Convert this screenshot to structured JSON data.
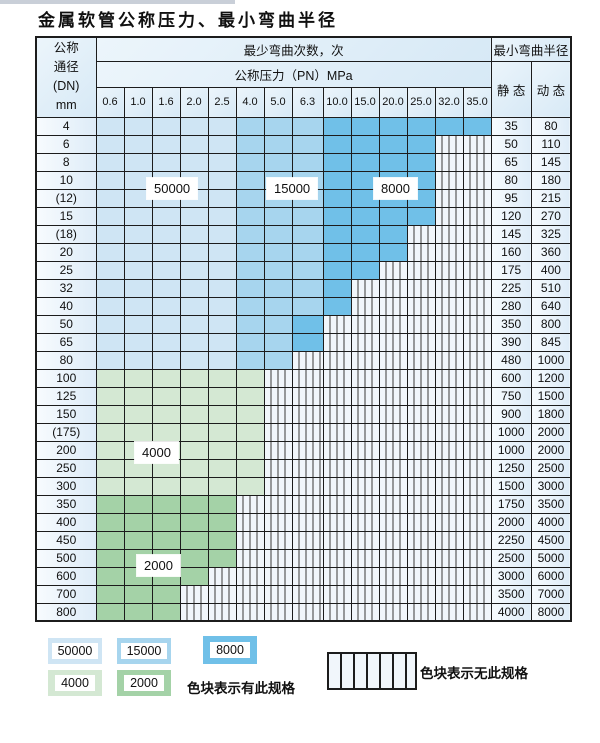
{
  "title": "金属软管公称压力、最小弯曲半径",
  "table": {
    "dn_header": [
      "公称",
      "通径",
      "(DN)",
      "mm"
    ],
    "bend_cycles_header": "最少弯曲次数，次",
    "pressure_header": "公称压力（PN）MPa",
    "radius_header": "最小弯曲半径",
    "static_label": "静 态",
    "dynamic_label": "动 态",
    "pressure_columns": [
      "0.6",
      "1.0",
      "1.6",
      "2.0",
      "2.5",
      "4.0",
      "5.0",
      "6.3",
      "10.0",
      "15.0",
      "20.0",
      "25.0",
      "32.0",
      "35.0"
    ],
    "rows": [
      {
        "dn": "4",
        "static": "35",
        "dynamic": "80",
        "cells": [
          "b1",
          "b1",
          "b1",
          "b1",
          "b1",
          "b2",
          "b2",
          "b2",
          "b3",
          "b3",
          "b3",
          "b3",
          "b3",
          "b3"
        ]
      },
      {
        "dn": "6",
        "static": "50",
        "dynamic": "110",
        "cells": [
          "b1",
          "b1",
          "b1",
          "b1",
          "b1",
          "b2",
          "b2",
          "b2",
          "b3",
          "b3",
          "b3",
          "b3",
          "x",
          "x"
        ]
      },
      {
        "dn": "8",
        "static": "65",
        "dynamic": "145",
        "cells": [
          "b1",
          "b1",
          "b1",
          "b1",
          "b1",
          "b2",
          "b2",
          "b2",
          "b3",
          "b3",
          "b3",
          "b3",
          "x",
          "x"
        ]
      },
      {
        "dn": "10",
        "static": "80",
        "dynamic": "180",
        "cells": [
          "b1",
          "b1",
          "b1",
          "b1",
          "b1",
          "b2",
          "b2",
          "b2",
          "b3",
          "b3",
          "b3",
          "b3",
          "x",
          "x"
        ]
      },
      {
        "dn": "(12)",
        "static": "95",
        "dynamic": "215",
        "cells": [
          "b1",
          "b1",
          "b1",
          "b1",
          "b1",
          "b2",
          "b2",
          "b2",
          "b3",
          "b3",
          "b3",
          "b3",
          "x",
          "x"
        ]
      },
      {
        "dn": "15",
        "static": "120",
        "dynamic": "270",
        "cells": [
          "b1",
          "b1",
          "b1",
          "b1",
          "b1",
          "b2",
          "b2",
          "b2",
          "b3",
          "b3",
          "b3",
          "b3",
          "x",
          "x"
        ]
      },
      {
        "dn": "(18)",
        "static": "145",
        "dynamic": "325",
        "cells": [
          "b1",
          "b1",
          "b1",
          "b1",
          "b1",
          "b2",
          "b2",
          "b2",
          "b3",
          "b3",
          "b3",
          "x",
          "x",
          "x"
        ]
      },
      {
        "dn": "20",
        "static": "160",
        "dynamic": "360",
        "cells": [
          "b1",
          "b1",
          "b1",
          "b1",
          "b1",
          "b2",
          "b2",
          "b2",
          "b3",
          "b3",
          "b3",
          "x",
          "x",
          "x"
        ]
      },
      {
        "dn": "25",
        "static": "175",
        "dynamic": "400",
        "cells": [
          "b1",
          "b1",
          "b1",
          "b1",
          "b1",
          "b2",
          "b2",
          "b2",
          "b3",
          "b3",
          "x",
          "x",
          "x",
          "x"
        ]
      },
      {
        "dn": "32",
        "static": "225",
        "dynamic": "510",
        "cells": [
          "b1",
          "b1",
          "b1",
          "b1",
          "b1",
          "b2",
          "b2",
          "b2",
          "b3",
          "x",
          "x",
          "x",
          "x",
          "x"
        ]
      },
      {
        "dn": "40",
        "static": "280",
        "dynamic": "640",
        "cells": [
          "b1",
          "b1",
          "b1",
          "b1",
          "b1",
          "b2",
          "b2",
          "b2",
          "b3",
          "x",
          "x",
          "x",
          "x",
          "x"
        ]
      },
      {
        "dn": "50",
        "static": "350",
        "dynamic": "800",
        "cells": [
          "b1",
          "b1",
          "b1",
          "b1",
          "b1",
          "b2",
          "b2",
          "b3",
          "x",
          "x",
          "x",
          "x",
          "x",
          "x"
        ]
      },
      {
        "dn": "65",
        "static": "390",
        "dynamic": "845",
        "cells": [
          "b1",
          "b1",
          "b1",
          "b1",
          "b1",
          "b2",
          "b2",
          "b3",
          "x",
          "x",
          "x",
          "x",
          "x",
          "x"
        ]
      },
      {
        "dn": "80",
        "static": "480",
        "dynamic": "1000",
        "cells": [
          "b1",
          "b1",
          "b1",
          "b1",
          "b1",
          "b2",
          "b2",
          "x",
          "x",
          "x",
          "x",
          "x",
          "x",
          "x"
        ]
      },
      {
        "dn": "100",
        "static": "600",
        "dynamic": "1200",
        "cells": [
          "g1",
          "g1",
          "g1",
          "g1",
          "g1",
          "g1",
          "x",
          "x",
          "x",
          "x",
          "x",
          "x",
          "x",
          "x"
        ]
      },
      {
        "dn": "125",
        "static": "750",
        "dynamic": "1500",
        "cells": [
          "g1",
          "g1",
          "g1",
          "g1",
          "g1",
          "g1",
          "x",
          "x",
          "x",
          "x",
          "x",
          "x",
          "x",
          "x"
        ]
      },
      {
        "dn": "150",
        "static": "900",
        "dynamic": "1800",
        "cells": [
          "g1",
          "g1",
          "g1",
          "g1",
          "g1",
          "g1",
          "x",
          "x",
          "x",
          "x",
          "x",
          "x",
          "x",
          "x"
        ]
      },
      {
        "dn": "(175)",
        "static": "1000",
        "dynamic": "2000",
        "cells": [
          "g1",
          "g1",
          "g1",
          "g1",
          "g1",
          "g1",
          "x",
          "x",
          "x",
          "x",
          "x",
          "x",
          "x",
          "x"
        ]
      },
      {
        "dn": "200",
        "static": "1000",
        "dynamic": "2000",
        "cells": [
          "g1",
          "g1",
          "g1",
          "g1",
          "g1",
          "g1",
          "x",
          "x",
          "x",
          "x",
          "x",
          "x",
          "x",
          "x"
        ]
      },
      {
        "dn": "250",
        "static": "1250",
        "dynamic": "2500",
        "cells": [
          "g1",
          "g1",
          "g1",
          "g1",
          "g1",
          "g1",
          "x",
          "x",
          "x",
          "x",
          "x",
          "x",
          "x",
          "x"
        ]
      },
      {
        "dn": "300",
        "static": "1500",
        "dynamic": "3000",
        "cells": [
          "g1",
          "g1",
          "g1",
          "g1",
          "g1",
          "g1",
          "x",
          "x",
          "x",
          "x",
          "x",
          "x",
          "x",
          "x"
        ]
      },
      {
        "dn": "350",
        "static": "1750",
        "dynamic": "3500",
        "cells": [
          "g2",
          "g2",
          "g2",
          "g2",
          "g2",
          "x",
          "x",
          "x",
          "x",
          "x",
          "x",
          "x",
          "x",
          "x"
        ]
      },
      {
        "dn": "400",
        "static": "2000",
        "dynamic": "4000",
        "cells": [
          "g2",
          "g2",
          "g2",
          "g2",
          "g2",
          "x",
          "x",
          "x",
          "x",
          "x",
          "x",
          "x",
          "x",
          "x"
        ]
      },
      {
        "dn": "450",
        "static": "2250",
        "dynamic": "4500",
        "cells": [
          "g2",
          "g2",
          "g2",
          "g2",
          "g2",
          "x",
          "x",
          "x",
          "x",
          "x",
          "x",
          "x",
          "x",
          "x"
        ]
      },
      {
        "dn": "500",
        "static": "2500",
        "dynamic": "5000",
        "cells": [
          "g2",
          "g2",
          "g2",
          "g2",
          "g2",
          "x",
          "x",
          "x",
          "x",
          "x",
          "x",
          "x",
          "x",
          "x"
        ]
      },
      {
        "dn": "600",
        "static": "3000",
        "dynamic": "6000",
        "cells": [
          "g2",
          "g2",
          "g2",
          "g2",
          "x",
          "x",
          "x",
          "x",
          "x",
          "x",
          "x",
          "x",
          "x",
          "x"
        ]
      },
      {
        "dn": "700",
        "static": "3500",
        "dynamic": "7000",
        "cells": [
          "g2",
          "g2",
          "g2",
          "x",
          "x",
          "x",
          "x",
          "x",
          "x",
          "x",
          "x",
          "x",
          "x",
          "x"
        ]
      },
      {
        "dn": "800",
        "static": "4000",
        "dynamic": "8000",
        "cells": [
          "g2",
          "g2",
          "g2",
          "x",
          "x",
          "x",
          "x",
          "x",
          "x",
          "x",
          "x",
          "x",
          "x",
          "x"
        ]
      }
    ]
  },
  "region_labels": [
    {
      "text": "50000"
    },
    {
      "text": "15000"
    },
    {
      "text": "8000"
    },
    {
      "text": "4000"
    },
    {
      "text": "2000"
    }
  ],
  "legend": {
    "swatches": [
      {
        "label": "50000",
        "color": "#cfe5f4"
      },
      {
        "label": "15000",
        "color": "#a7d5ee"
      },
      {
        "label": "8000",
        "color": "#70c0e8"
      },
      {
        "label": "4000",
        "color": "#d4e8d3"
      },
      {
        "label": "2000",
        "color": "#a4d2a7"
      }
    ],
    "has_spec_text": "色块表示有此规格",
    "no_spec_text": "色块表示无此规格"
  },
  "colors": {
    "blue_50000": "#cfe5f4",
    "blue_15000": "#a7d5ee",
    "blue_8000": "#70c0e8",
    "green_4000": "#d4e8d3",
    "green_2000": "#a4d2a7",
    "stripe_bg": "#f1f6fb",
    "stripe_line": "#3a3a3a"
  }
}
